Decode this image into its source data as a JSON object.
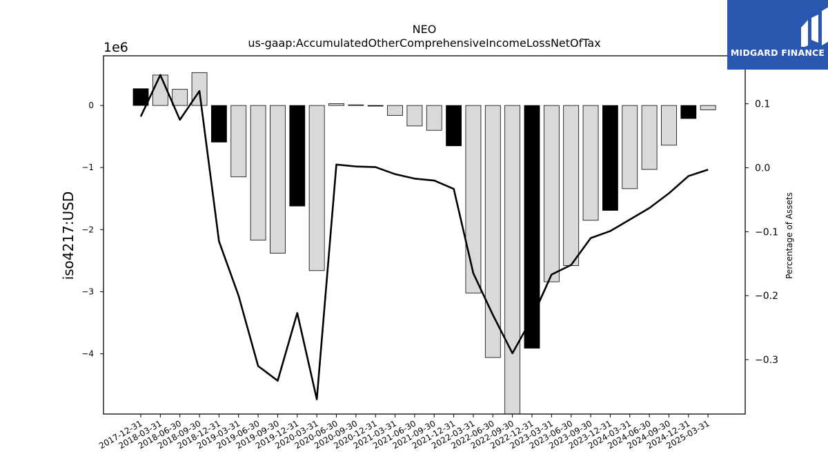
{
  "chart_data": {
    "type": "bar",
    "title": "NEO",
    "subtitle": "us-gaap:AccumulatedOtherComprehensiveIncomeLossNetOfTax",
    "ylabel": "iso4217:USD",
    "y_multiplier_label": "1e6",
    "y2label": "Percentage of Assets",
    "ylim": [
      -4.97,
      0.8
    ],
    "y2lim": [
      -0.385,
      0.175
    ],
    "yticks": [
      0,
      -1,
      -2,
      -3,
      -4
    ],
    "yticklabels": [
      "0",
      "−1",
      "−2",
      "−3",
      "−4"
    ],
    "y2ticks": [
      0.1,
      0.0,
      -0.1,
      -0.2,
      -0.3
    ],
    "y2ticklabels": [
      "0.1",
      "0.0",
      "−0.1",
      "−0.2",
      "−0.3"
    ],
    "grid": false,
    "categories": [
      "2017-12-31",
      "2018-03-31",
      "2018-06-30",
      "2018-09-30",
      "2018-12-31",
      "2019-03-31",
      "2019-06-30",
      "2019-09-30",
      "2019-12-31",
      "2020-03-31",
      "2020-06-30",
      "2020-09-30",
      "2020-12-31",
      "2021-03-31",
      "2021-06-30",
      "2021-09-30",
      "2021-12-31",
      "2022-03-31",
      "2022-06-30",
      "2022-09-30",
      "2022-12-31",
      "2023-03-31",
      "2023-06-30",
      "2023-09-30",
      "2023-12-31",
      "2024-03-31",
      "2024-06-30",
      "2024-09-30",
      "2024-12-31",
      "2025-03-31"
    ],
    "series": [
      {
        "kind": "bar",
        "values": [
          0.27,
          0.49,
          0.26,
          0.53,
          -0.59,
          -1.15,
          -2.17,
          -2.38,
          -1.62,
          -2.66,
          0.03,
          0.01,
          -0.01,
          -0.16,
          -0.33,
          -0.4,
          -0.65,
          -3.02,
          -4.06,
          -4.97,
          -3.91,
          -2.84,
          -2.58,
          -1.85,
          -1.69,
          -1.34,
          -1.03,
          -0.64,
          -0.21,
          -0.07
        ],
        "year_end": [
          true,
          false,
          false,
          false,
          true,
          false,
          false,
          false,
          true,
          false,
          false,
          false,
          true,
          false,
          false,
          false,
          true,
          false,
          false,
          false,
          true,
          false,
          false,
          false,
          true,
          false,
          false,
          false,
          true,
          false
        ]
      },
      {
        "kind": "line",
        "axis": "right",
        "values": [
          0.08,
          0.145,
          0.075,
          0.12,
          -0.115,
          -0.2,
          -0.31,
          -0.333,
          -0.227,
          -0.362,
          0.005,
          0.002,
          0.001,
          -0.01,
          -0.017,
          -0.02,
          -0.033,
          -0.165,
          -0.23,
          -0.29,
          -0.235,
          -0.167,
          -0.152,
          -0.11,
          -0.099,
          -0.081,
          -0.063,
          -0.04,
          -0.013,
          -0.003
        ]
      }
    ],
    "colors": {
      "year_end_bar": "#000000",
      "bar": "#d9d9d9",
      "bar_edge": "#000000",
      "line": "#000000"
    }
  },
  "logo": {
    "text": "MIDGARD FINANCE",
    "color": "#2a57b0"
  }
}
